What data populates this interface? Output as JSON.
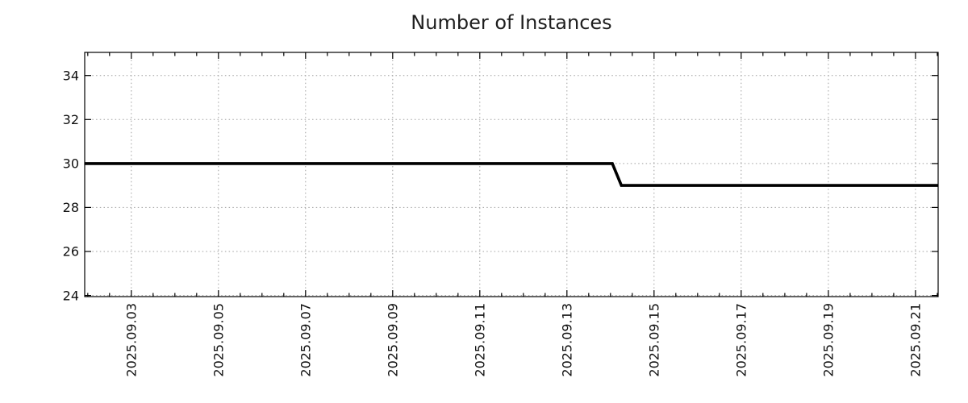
{
  "page": {
    "background": "#ffffff"
  },
  "chart_data": {
    "type": "line",
    "title": "Number of Instances",
    "grid": true,
    "legend": "none",
    "x_axis": {
      "range": [
        "2025.09.01 22:20",
        "2025.09.21 12:30"
      ],
      "tick_labels": [
        "2025.09.03",
        "2025.09.05",
        "2025.09.07",
        "2025.09.09",
        "2025.09.11",
        "2025.09.13",
        "2025.09.15",
        "2025.09.17",
        "2025.09.19",
        "2025.09.21"
      ],
      "minor_tick_interval_days": 0.5,
      "label_rotation_deg": 90
    },
    "y_axis": {
      "range": [
        23.95,
        35.05
      ],
      "tick_labels": [
        24,
        26,
        28,
        30,
        32,
        34
      ]
    },
    "series": [
      {
        "name": "instances",
        "color": "#000000",
        "line_width": 3.6,
        "points": [
          {
            "x": "2025.09.01 22:20",
            "y": 30
          },
          {
            "x": "2025.09.14 01:00",
            "y": 30
          },
          {
            "x": "2025.09.14 06:00",
            "y": 29
          },
          {
            "x": "2025.09.21 12:30",
            "y": 29
          }
        ]
      }
    ],
    "style": {
      "grid_color": "#a0a0a0",
      "axis_color": "#000000",
      "text_color": "#101010",
      "title_color": "#1e1e1e"
    }
  }
}
